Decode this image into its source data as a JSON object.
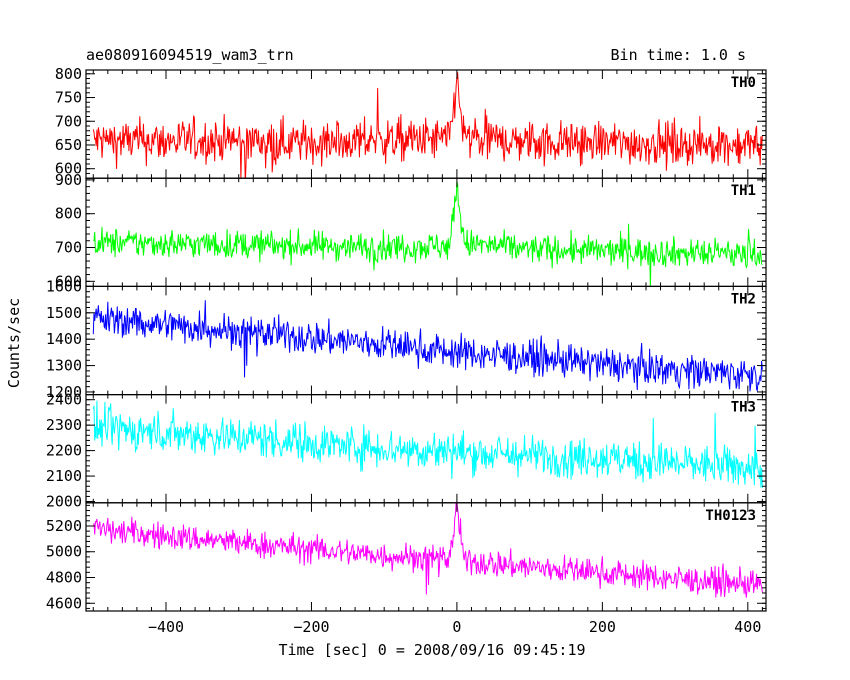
{
  "header": {
    "source_name": "ae080916094519_wam3_trn",
    "bin_time": "Bin time: 1.0 s"
  },
  "chart_data": {
    "type": "line",
    "xlabel": "Time [sec] 0 = 2008/09/16 09:45:19",
    "ylabel": "Counts/sec",
    "xlim": [
      -510,
      425
    ],
    "xticks": [
      -400,
      -200,
      0,
      200,
      400
    ],
    "xtick_labels": [
      "−400",
      "−200",
      "0",
      "200",
      "400"
    ],
    "series": [
      {
        "name": "TH0",
        "color": "#ff0000",
        "ylim": [
          580,
          808
        ],
        "yticks": [
          600,
          650,
          700,
          750,
          800
        ],
        "ytick_labels": [
          "600",
          "650",
          "700",
          "750",
          "800"
        ],
        "x": [
          -500,
          -400,
          -300,
          -200,
          -100,
          -10,
          0,
          10,
          100,
          200,
          300,
          420
        ],
        "y": [
          660,
          658,
          660,
          655,
          660,
          662,
          790,
          662,
          658,
          655,
          652,
          650
        ],
        "noise": 32
      },
      {
        "name": "TH1",
        "color": "#00ff00",
        "ylim": [
          585,
          905
        ],
        "yticks": [
          600,
          700,
          800,
          900
        ],
        "ytick_labels": [
          "600",
          "700",
          "800",
          "900"
        ],
        "x": [
          -500,
          -400,
          -300,
          -200,
          -100,
          -10,
          0,
          10,
          100,
          200,
          300,
          420
        ],
        "y": [
          715,
          712,
          708,
          705,
          702,
          705,
          880,
          712,
          695,
          690,
          685,
          680
        ],
        "noise": 30
      },
      {
        "name": "TH2",
        "color": "#0000ff",
        "ylim": [
          1190,
          1600
        ],
        "yticks": [
          1200,
          1300,
          1400,
          1500,
          1600
        ],
        "ytick_labels": [
          "1200",
          "1300",
          "1400",
          "1500",
          "1600"
        ],
        "x": [
          -500,
          -400,
          -300,
          -200,
          -100,
          0,
          100,
          200,
          300,
          420
        ],
        "y": [
          1480,
          1455,
          1430,
          1405,
          1380,
          1350,
          1330,
          1305,
          1285,
          1265
        ],
        "noise": 45
      },
      {
        "name": "TH3",
        "color": "#00ffff",
        "ylim": [
          1995,
          2420
        ],
        "yticks": [
          2000,
          2100,
          2200,
          2300,
          2400
        ],
        "ytick_labels": [
          "2000",
          "2100",
          "2200",
          "2300",
          "2400"
        ],
        "x": [
          -500,
          -400,
          -300,
          -200,
          -100,
          0,
          100,
          200,
          300,
          420
        ],
        "y": [
          2290,
          2270,
          2255,
          2230,
          2210,
          2195,
          2180,
          2170,
          2150,
          2130
        ],
        "noise": 55
      },
      {
        "name": "TH0123",
        "color": "#ff00ff",
        "ylim": [
          4540,
          5380
        ],
        "yticks": [
          4600,
          4800,
          5000,
          5200
        ],
        "ytick_labels": [
          "4600",
          "4800",
          "5000",
          "5200"
        ],
        "x": [
          -500,
          -400,
          -300,
          -200,
          -100,
          -10,
          0,
          10,
          100,
          200,
          300,
          420
        ],
        "y": [
          5180,
          5120,
          5070,
          5020,
          4970,
          4950,
          5330,
          4930,
          4880,
          4840,
          4790,
          4740
        ],
        "noise": 75
      }
    ]
  }
}
